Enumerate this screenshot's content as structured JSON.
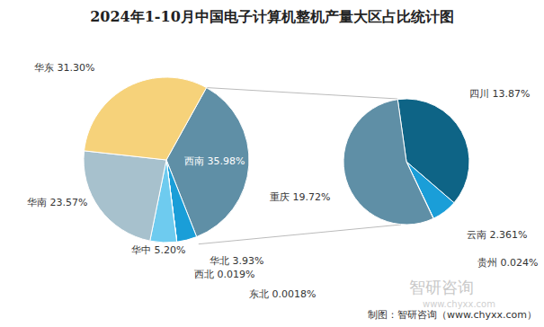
{
  "title": "2024年1-10月中国电子计算机整机产量大区占比统计图",
  "source": "制图：智研咨询（www.chyxx.com）",
  "watermark": [
    "智研咨询",
    "www.chyxx.com"
  ],
  "chart_data": [
    {
      "type": "pie",
      "categories": [
        "西南",
        "华北",
        "西北",
        "东北",
        "华中",
        "华南",
        "华东"
      ],
      "values": [
        35.98,
        3.93,
        0.019,
        0.0018,
        5.2,
        23.57,
        31.3
      ],
      "value_labels": [
        "35.98%",
        "3.93%",
        "0.019%",
        "0.0018%",
        "5.20%",
        "23.57%",
        "31.30%"
      ],
      "colors": [
        "#5f8fa6",
        "#1a9ed8",
        "#2c7fb8",
        "#8aa8b5",
        "#6ecbef",
        "#a7c1cd",
        "#f6d27a"
      ],
      "data_labels": true
    },
    {
      "type": "pie",
      "categories": [
        "四川",
        "云南",
        "贵州",
        "重庆"
      ],
      "values": [
        13.87,
        2.361,
        0.024,
        19.72
      ],
      "value_labels": [
        "13.87%",
        "2.361%",
        "0.024%",
        "19.72%"
      ],
      "colors": [
        "#0e6486",
        "#1a9ed8",
        "#7bb8d2",
        "#5f8fa6"
      ],
      "data_labels": true
    }
  ]
}
